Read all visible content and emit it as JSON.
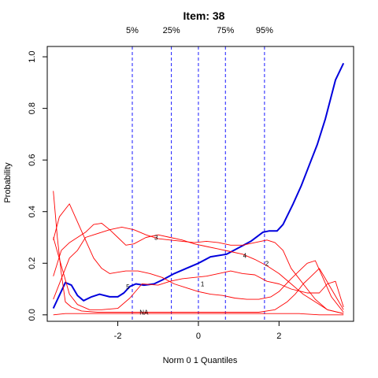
{
  "chart_data": {
    "type": "line",
    "title": "Item:  38",
    "xlabel": "Norm 0 1 Quantiles",
    "ylabel": "Probability",
    "xlim": [
      -3.75,
      3.85
    ],
    "ylim": [
      -0.025,
      1.04
    ],
    "x_ticks": [
      -2,
      0,
      2
    ],
    "y_ticks": [
      0.0,
      0.2,
      0.4,
      0.6,
      0.8,
      1.0
    ],
    "y_tick_labels": [
      "0.0",
      "0.2",
      "0.4",
      "0.6",
      "0.8",
      "1.0"
    ],
    "x_tick_labels": [
      "-2",
      "0",
      "2"
    ],
    "grid": false,
    "quantile_lines": [
      {
        "label": "5%",
        "x": -1.64
      },
      {
        "label": "25%",
        "x": -0.67
      },
      {
        "label": "",
        "x": 0.0
      },
      {
        "label": "75%",
        "x": 0.67
      },
      {
        "label": "95%",
        "x": 1.64
      }
    ],
    "series": [
      {
        "label": "",
        "color": "#0000dd",
        "emphasis": true,
        "points": [
          [
            -3.6,
            0.025
          ],
          [
            -3.3,
            0.125
          ],
          [
            -3.15,
            0.115
          ],
          [
            -3.0,
            0.075
          ],
          [
            -2.85,
            0.055
          ],
          [
            -2.65,
            0.07
          ],
          [
            -2.45,
            0.08
          ],
          [
            -2.2,
            0.07
          ],
          [
            -2.0,
            0.07
          ],
          [
            -1.85,
            0.085
          ],
          [
            -1.7,
            0.11
          ],
          [
            -1.55,
            0.12
          ],
          [
            -1.35,
            0.115
          ],
          [
            -1.1,
            0.12
          ],
          [
            -0.9,
            0.135
          ],
          [
            -0.6,
            0.16
          ],
          [
            -0.3,
            0.18
          ],
          [
            0.0,
            0.2
          ],
          [
            0.3,
            0.225
          ],
          [
            0.7,
            0.235
          ],
          [
            1.0,
            0.26
          ],
          [
            1.3,
            0.285
          ],
          [
            1.6,
            0.32
          ],
          [
            1.75,
            0.325
          ],
          [
            1.95,
            0.325
          ],
          [
            2.1,
            0.35
          ],
          [
            2.35,
            0.43
          ],
          [
            2.55,
            0.5
          ],
          [
            2.75,
            0.58
          ],
          [
            2.95,
            0.66
          ],
          [
            3.15,
            0.76
          ],
          [
            3.4,
            0.91
          ],
          [
            3.6,
            0.975
          ]
        ]
      },
      {
        "label": "NA",
        "color": "#ff0000",
        "label_at": [
          -1.35,
          0.01
        ],
        "points": [
          [
            -3.6,
            0.0
          ],
          [
            -3.3,
            0.005
          ],
          [
            -3.0,
            0.005
          ],
          [
            -2.7,
            0.005
          ],
          [
            -2.4,
            0.005
          ],
          [
            -2.0,
            0.005
          ],
          [
            -1.6,
            0.005
          ],
          [
            -1.0,
            0.005
          ],
          [
            -0.5,
            0.005
          ],
          [
            0.0,
            0.005
          ],
          [
            0.5,
            0.005
          ],
          [
            1.0,
            0.005
          ],
          [
            1.5,
            0.005
          ],
          [
            2.0,
            0.005
          ],
          [
            2.5,
            0.005
          ],
          [
            3.0,
            0.0
          ],
          [
            3.6,
            0.0
          ]
        ]
      },
      {
        "label": "1",
        "color": "#ff0000",
        "label_at": [
          0.1,
          0.12
        ],
        "points": [
          [
            -3.6,
            0.3
          ],
          [
            -3.4,
            0.19
          ],
          [
            -3.2,
            0.08
          ],
          [
            -3.0,
            0.04
          ],
          [
            -2.7,
            0.02
          ],
          [
            -2.4,
            0.02
          ],
          [
            -2.0,
            0.025
          ],
          [
            -1.7,
            0.065
          ],
          [
            -1.4,
            0.12
          ],
          [
            -1.0,
            0.115
          ],
          [
            -0.7,
            0.13
          ],
          [
            -0.4,
            0.14
          ],
          [
            -0.1,
            0.145
          ],
          [
            0.2,
            0.15
          ],
          [
            0.5,
            0.16
          ],
          [
            0.8,
            0.17
          ],
          [
            1.1,
            0.16
          ],
          [
            1.4,
            0.155
          ],
          [
            1.7,
            0.13
          ],
          [
            2.0,
            0.12
          ],
          [
            2.3,
            0.1
          ],
          [
            2.7,
            0.085
          ],
          [
            3.0,
            0.085
          ],
          [
            3.2,
            0.12
          ],
          [
            3.4,
            0.13
          ],
          [
            3.6,
            0.03
          ]
        ]
      },
      {
        "label": "2",
        "color": "#ff0000",
        "label_at": [
          1.7,
          0.2
        ],
        "points": [
          [
            -3.6,
            0.15
          ],
          [
            -3.4,
            0.25
          ],
          [
            -3.2,
            0.28
          ],
          [
            -3.0,
            0.3
          ],
          [
            -2.8,
            0.32
          ],
          [
            -2.6,
            0.35
          ],
          [
            -2.4,
            0.355
          ],
          [
            -2.2,
            0.33
          ],
          [
            -2.0,
            0.3
          ],
          [
            -1.8,
            0.27
          ],
          [
            -1.6,
            0.275
          ],
          [
            -1.3,
            0.3
          ],
          [
            -1.0,
            0.31
          ],
          [
            -0.7,
            0.3
          ],
          [
            -0.4,
            0.29
          ],
          [
            -0.1,
            0.275
          ],
          [
            0.2,
            0.265
          ],
          [
            0.5,
            0.255
          ],
          [
            0.8,
            0.245
          ],
          [
            1.1,
            0.235
          ],
          [
            1.4,
            0.215
          ],
          [
            1.7,
            0.19
          ],
          [
            2.0,
            0.16
          ],
          [
            2.3,
            0.12
          ],
          [
            2.6,
            0.08
          ],
          [
            2.9,
            0.05
          ],
          [
            3.2,
            0.02
          ],
          [
            3.6,
            0.005
          ]
        ]
      },
      {
        "label": "3",
        "color": "#ff0000",
        "label_at": [
          -1.05,
          0.3
        ],
        "points": [
          [
            -3.6,
            0.06
          ],
          [
            -3.4,
            0.14
          ],
          [
            -3.2,
            0.22
          ],
          [
            -3.0,
            0.25
          ],
          [
            -2.8,
            0.3
          ],
          [
            -2.6,
            0.31
          ],
          [
            -2.4,
            0.32
          ],
          [
            -2.2,
            0.33
          ],
          [
            -1.9,
            0.34
          ],
          [
            -1.6,
            0.33
          ],
          [
            -1.3,
            0.31
          ],
          [
            -1.0,
            0.295
          ],
          [
            -0.7,
            0.29
          ],
          [
            -0.4,
            0.285
          ],
          [
            -0.1,
            0.28
          ],
          [
            0.2,
            0.285
          ],
          [
            0.5,
            0.28
          ],
          [
            0.8,
            0.27
          ],
          [
            1.1,
            0.27
          ],
          [
            1.4,
            0.28
          ],
          [
            1.7,
            0.29
          ],
          [
            1.9,
            0.28
          ],
          [
            2.1,
            0.25
          ],
          [
            2.3,
            0.18
          ],
          [
            2.6,
            0.12
          ],
          [
            2.9,
            0.06
          ],
          [
            3.2,
            0.02
          ],
          [
            3.6,
            0.005
          ]
        ]
      },
      {
        "label": "4",
        "color": "#ff0000",
        "label_at": [
          1.15,
          0.23
        ],
        "points": [
          [
            -3.6,
            0.48
          ],
          [
            -3.5,
            0.3
          ],
          [
            -3.4,
            0.16
          ],
          [
            -3.3,
            0.05
          ],
          [
            -3.15,
            0.03
          ],
          [
            -2.9,
            0.015
          ],
          [
            -2.5,
            0.01
          ],
          [
            -2.0,
            0.01
          ],
          [
            -1.5,
            0.01
          ],
          [
            -1.0,
            0.01
          ],
          [
            -0.5,
            0.01
          ],
          [
            0.0,
            0.01
          ],
          [
            0.5,
            0.01
          ],
          [
            1.0,
            0.01
          ],
          [
            1.5,
            0.01
          ],
          [
            1.9,
            0.02
          ],
          [
            2.2,
            0.05
          ],
          [
            2.4,
            0.08
          ],
          [
            2.6,
            0.12
          ],
          [
            2.8,
            0.15
          ],
          [
            3.0,
            0.18
          ],
          [
            3.15,
            0.14
          ],
          [
            3.3,
            0.1
          ],
          [
            3.6,
            0.02
          ]
        ]
      },
      {
        "label": "5",
        "color": "#ff0000",
        "label_at": [
          -1.75,
          0.11
        ],
        "points": [
          [
            -3.6,
            0.29
          ],
          [
            -3.45,
            0.38
          ],
          [
            -3.3,
            0.41
          ],
          [
            -3.2,
            0.43
          ],
          [
            -3.0,
            0.36
          ],
          [
            -2.8,
            0.29
          ],
          [
            -2.6,
            0.22
          ],
          [
            -2.4,
            0.18
          ],
          [
            -2.2,
            0.16
          ],
          [
            -2.0,
            0.165
          ],
          [
            -1.8,
            0.17
          ],
          [
            -1.5,
            0.17
          ],
          [
            -1.2,
            0.16
          ],
          [
            -0.9,
            0.145
          ],
          [
            -0.6,
            0.12
          ],
          [
            -0.3,
            0.105
          ],
          [
            0.0,
            0.09
          ],
          [
            0.3,
            0.08
          ],
          [
            0.6,
            0.075
          ],
          [
            0.9,
            0.065
          ],
          [
            1.2,
            0.06
          ],
          [
            1.5,
            0.06
          ],
          [
            1.8,
            0.07
          ],
          [
            2.0,
            0.09
          ],
          [
            2.3,
            0.14
          ],
          [
            2.5,
            0.17
          ],
          [
            2.7,
            0.2
          ],
          [
            2.9,
            0.21
          ],
          [
            3.1,
            0.14
          ],
          [
            3.3,
            0.07
          ],
          [
            3.6,
            0.01
          ]
        ]
      }
    ]
  }
}
